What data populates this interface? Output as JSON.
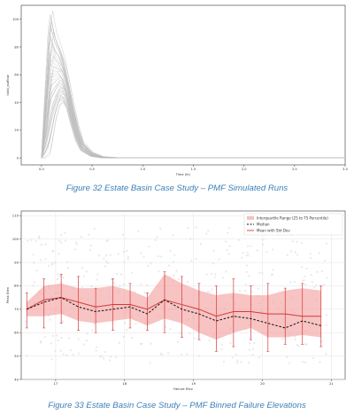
{
  "captions": {
    "fig1": "Figure 32 Estate Basin Case Study – PMF Simulated Runs",
    "fig2": "Figure 33 Estate Basin Case Study – PMF Binned Failure Elevations"
  },
  "chart_data": [
    {
      "type": "line",
      "title": "",
      "xlabel": "Time (hr)",
      "ylabel": "total_outflow",
      "xlim": [
        -0.2,
        3.0
      ],
      "ylim": [
        -5,
        110
      ],
      "xticks": [
        "0.0",
        "0.5",
        "1.0",
        "1.5",
        "2.0",
        "2.5",
        "3.0"
      ],
      "yticks": [
        "0",
        "20",
        "40",
        "60",
        "80",
        "100"
      ],
      "grid": false,
      "series_color": "#bdbdbd",
      "run_count_drawn": 40,
      "envelope": {
        "x": [
          0.0,
          0.04,
          0.08,
          0.1,
          0.14,
          0.18,
          0.22,
          0.26,
          0.3,
          0.35,
          0.4,
          0.5,
          0.6,
          0.8,
          1.0,
          3.0
        ],
        "lower": [
          0,
          0,
          2,
          8,
          26,
          38,
          40,
          35,
          24,
          12,
          5,
          1,
          0,
          0,
          0,
          0
        ],
        "upper": [
          0,
          40,
          95,
          106,
          90,
          82,
          72,
          58,
          42,
          25,
          12,
          4,
          1,
          0,
          0,
          0
        ]
      }
    },
    {
      "type": "line",
      "title": "",
      "xlabel": "Failure Elev",
      "ylabel": "Peak Elev",
      "xlim": [
        16.5,
        21.2
      ],
      "ylim": [
        40,
        112
      ],
      "xticks": [
        "17",
        "18",
        "19",
        "20",
        "21"
      ],
      "yticks": [
        "40",
        "50",
        "60",
        "70",
        "80",
        "90",
        "100",
        "110"
      ],
      "grid": true,
      "legend": {
        "placement": "top-right",
        "entries": [
          "Interquartile Range (25 to 75 Percentile)",
          "Median",
          "Mean with Std Dev"
        ]
      },
      "colors": {
        "band": "#f4a3a3",
        "median": "#111111",
        "mean": "#d23b3b",
        "scatter": "#d9d9d9"
      },
      "x": [
        16.58,
        16.83,
        17.08,
        17.33,
        17.58,
        17.83,
        18.08,
        18.33,
        18.58,
        18.83,
        19.08,
        19.33,
        19.58,
        19.83,
        20.08,
        20.33,
        20.58,
        20.85
      ],
      "q25": [
        67,
        67,
        68,
        65,
        64,
        65,
        66,
        63,
        66,
        64,
        60,
        57,
        60,
        62,
        58,
        58,
        59,
        58
      ],
      "q75": [
        73,
        80,
        81,
        79,
        79,
        80,
        78,
        75,
        85,
        81,
        78,
        76,
        77,
        76,
        76,
        78,
        79,
        78
      ],
      "median": [
        70,
        73,
        75,
        71,
        69,
        70,
        71,
        68,
        74,
        70,
        68,
        65,
        67,
        66,
        64,
        62,
        65,
        63
      ],
      "mean": [
        70,
        74,
        75,
        73,
        71,
        72,
        72,
        70,
        74,
        72,
        70,
        67,
        69,
        69,
        68,
        68,
        67,
        67
      ],
      "std_low": [
        62,
        62,
        64,
        61,
        60,
        61,
        62,
        61,
        60,
        58,
        57,
        52,
        54,
        57,
        52,
        55,
        55,
        54
      ],
      "std_high": [
        77,
        83,
        85,
        84,
        79,
        83,
        81,
        77,
        86,
        84,
        81,
        80,
        83,
        80,
        81,
        79,
        81,
        80
      ]
    }
  ]
}
